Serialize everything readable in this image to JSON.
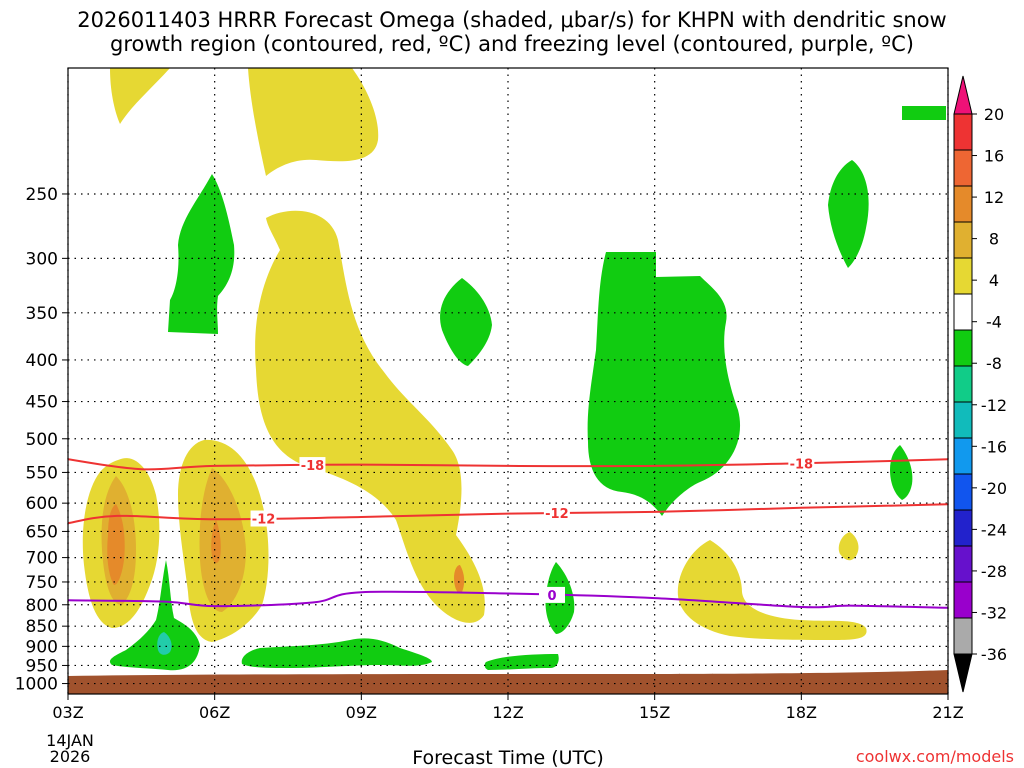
{
  "header": {
    "line1": "2026011403 HRRR Forecast Omega (shaded, μbar/s) for KHPN with dendritic snow",
    "line2": "growth region (contoured, red, ºC) and freezing level (contoured, purple, ºC)"
  },
  "footer": {
    "xlabel": "Forecast Time (UTC)",
    "date_line1": "14JAN",
    "date_line2": "2026",
    "credit": "coolwx.com/models"
  },
  "colors": {
    "yellow": "#e6d833",
    "gold": "#e0b030",
    "orange": "#e58a2a",
    "green": "#11cc11",
    "teal": "#22ccaa",
    "ground": "#a0522d",
    "red_contour": "#ee3333",
    "purple_contour": "#9900cc"
  },
  "chart_data": {
    "type": "contour",
    "x_ticks": [
      "03Z",
      "06Z",
      "09Z",
      "12Z",
      "15Z",
      "18Z",
      "21Z"
    ],
    "x_range_hours_utc": [
      3,
      21
    ],
    "y_ticks": [
      250,
      300,
      350,
      400,
      450,
      500,
      550,
      600,
      650,
      700,
      750,
      800,
      850,
      900,
      950,
      1000
    ],
    "y_range_hpa": [
      1030,
      175
    ],
    "y_axis": "pressure (hPa), reversed, log-pressure spacing",
    "grid": true,
    "colorbar": {
      "levels": [
        20,
        16,
        12,
        8,
        4,
        -4,
        -8,
        -12,
        -16,
        -20,
        -24,
        -28,
        -32,
        -36
      ],
      "colors": [
        "#ee1177",
        "#ee3333",
        "#ee6633",
        "#e58a2a",
        "#e0b030",
        "#e6d833",
        "#ffffff",
        "#11cc11",
        "#11cc88",
        "#11bbbb",
        "#1199ee",
        "#1155ee",
        "#2222cc",
        "#6611cc",
        "#9900cc",
        "#aaaaaa",
        "#000000"
      ]
    },
    "contours": [
      {
        "name": "dendritic_top",
        "label": "-18",
        "color": "#ee3333",
        "points": [
          [
            3.0,
            530
          ],
          [
            4.5,
            545
          ],
          [
            6,
            540
          ],
          [
            9,
            538
          ],
          [
            12,
            540
          ],
          [
            15,
            540
          ],
          [
            18,
            536
          ],
          [
            21,
            530
          ]
        ]
      },
      {
        "name": "dendritic_bottom",
        "label": "-12",
        "color": "#ee3333",
        "points": [
          [
            3.0,
            635
          ],
          [
            4,
            622
          ],
          [
            6,
            628
          ],
          [
            9,
            624
          ],
          [
            12,
            618
          ],
          [
            15,
            615
          ],
          [
            18,
            608
          ],
          [
            21,
            602
          ]
        ]
      },
      {
        "name": "freezing_level",
        "label": "0",
        "color": "#9900cc",
        "points": [
          [
            3.0,
            790
          ],
          [
            5,
            793
          ],
          [
            6,
            803
          ],
          [
            8,
            795
          ],
          [
            9,
            772
          ],
          [
            12,
            775
          ],
          [
            15,
            785
          ],
          [
            18,
            805
          ],
          [
            19,
            802
          ],
          [
            21,
            807
          ]
        ]
      }
    ]
  }
}
